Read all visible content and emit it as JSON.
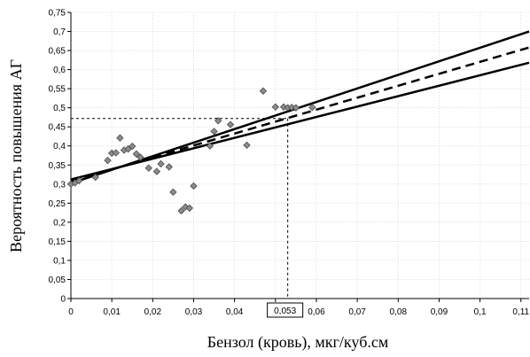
{
  "chart_data": {
    "type": "scatter",
    "title": "",
    "xlabel": "Бензол (кровь), мкг/куб.см",
    "ylabel": "Вероятность повышения АГ",
    "xlim": [
      0,
      0.112
    ],
    "ylim": [
      0,
      0.75
    ],
    "x_ticks": [
      0,
      0.01,
      0.02,
      0.03,
      0.04,
      0.05,
      0.06,
      0.07,
      0.08,
      0.09,
      0.1,
      0.11
    ],
    "x_tick_labels": [
      "0",
      "0,01",
      "0,02",
      "0,03",
      "0,04",
      "0,05",
      "0,06",
      "0,07",
      "0,08",
      "0,09",
      "0,1",
      "0,11"
    ],
    "y_ticks": [
      0,
      0.05,
      0.1,
      0.15,
      0.2,
      0.25,
      0.3,
      0.35,
      0.4,
      0.45,
      0.5,
      0.55,
      0.6,
      0.65,
      0.7,
      0.75
    ],
    "y_tick_labels": [
      "0",
      "0,05",
      "0,1",
      "0,15",
      "0,2",
      "0,25",
      "0,3",
      "0,35",
      "0,4",
      "0,45",
      "0,5",
      "0,55",
      "0,6",
      "0,65",
      "0,7",
      "0,75"
    ],
    "grid": true,
    "points": [
      {
        "x": 0.0,
        "y": 0.3
      },
      {
        "x": 0.001,
        "y": 0.303
      },
      {
        "x": 0.002,
        "y": 0.309
      },
      {
        "x": 0.006,
        "y": 0.318
      },
      {
        "x": 0.009,
        "y": 0.362
      },
      {
        "x": 0.01,
        "y": 0.381
      },
      {
        "x": 0.011,
        "y": 0.382
      },
      {
        "x": 0.012,
        "y": 0.421
      },
      {
        "x": 0.013,
        "y": 0.389
      },
      {
        "x": 0.014,
        "y": 0.392
      },
      {
        "x": 0.015,
        "y": 0.399
      },
      {
        "x": 0.016,
        "y": 0.379
      },
      {
        "x": 0.017,
        "y": 0.37
      },
      {
        "x": 0.019,
        "y": 0.342
      },
      {
        "x": 0.021,
        "y": 0.333
      },
      {
        "x": 0.022,
        "y": 0.353
      },
      {
        "x": 0.024,
        "y": 0.345
      },
      {
        "x": 0.025,
        "y": 0.279
      },
      {
        "x": 0.027,
        "y": 0.23
      },
      {
        "x": 0.028,
        "y": 0.24
      },
      {
        "x": 0.029,
        "y": 0.237
      },
      {
        "x": 0.03,
        "y": 0.295
      },
      {
        "x": 0.034,
        "y": 0.4
      },
      {
        "x": 0.035,
        "y": 0.438
      },
      {
        "x": 0.036,
        "y": 0.466
      },
      {
        "x": 0.039,
        "y": 0.456
      },
      {
        "x": 0.043,
        "y": 0.402
      },
      {
        "x": 0.047,
        "y": 0.544
      },
      {
        "x": 0.05,
        "y": 0.502
      },
      {
        "x": 0.052,
        "y": 0.502
      },
      {
        "x": 0.053,
        "y": 0.5
      },
      {
        "x": 0.054,
        "y": 0.501
      },
      {
        "x": 0.055,
        "y": 0.5
      },
      {
        "x": 0.059,
        "y": 0.501
      }
    ],
    "fit_line": [
      [
        0,
        0.307
      ],
      [
        0.112,
        0.658
      ]
    ],
    "upper_bound": [
      [
        0,
        0.302
      ],
      [
        0.112,
        0.7
      ]
    ],
    "lower_bound": [
      [
        0,
        0.312
      ],
      [
        0.112,
        0.618
      ]
    ],
    "callout": {
      "x": 0.053,
      "y": 0.472,
      "label": "0,053"
    }
  }
}
